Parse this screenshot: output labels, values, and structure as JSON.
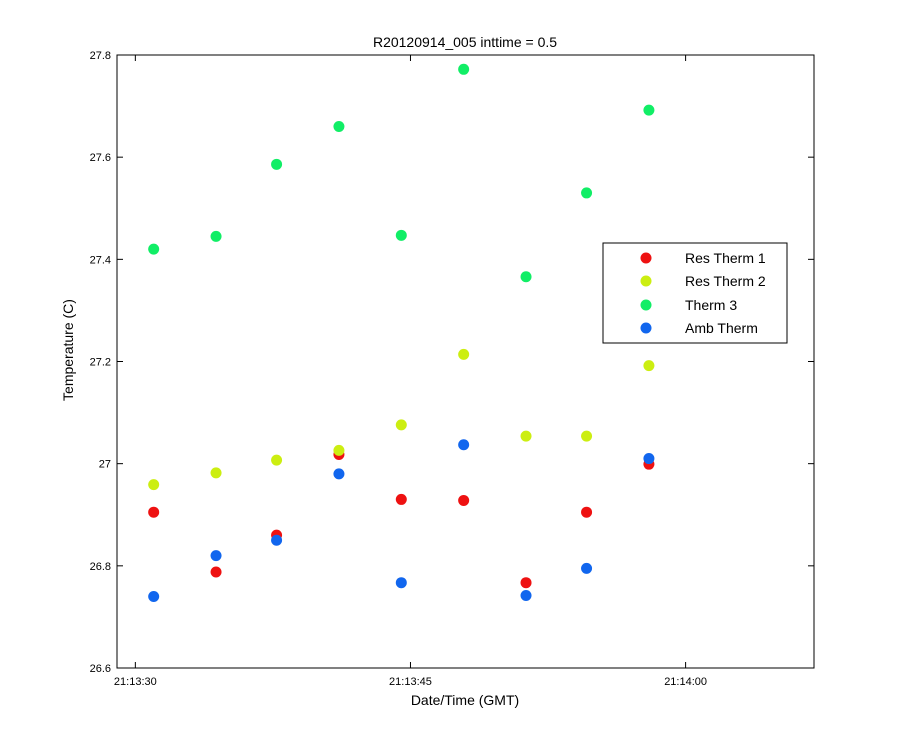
{
  "chart_data": {
    "type": "scatter",
    "title": "R20120914_005 inttime = 0.5",
    "xlabel": "Date/Time (GMT)",
    "ylabel": "Temperature (C)",
    "xlim": [
      "21:13:29",
      "21:14:07"
    ],
    "ylim": [
      26.6,
      27.8
    ],
    "xticks": [
      "21:13:30",
      "21:13:45",
      "21:14:00"
    ],
    "yticks": [
      "26.6",
      "26.8",
      "27",
      "27.2",
      "27.4",
      "27.6",
      "27.8"
    ],
    "legend_position": "right",
    "grid": false,
    "x": [
      "21:13:31",
      "21:13:34.4",
      "21:13:37.7",
      "21:13:41.1",
      "21:13:44.5",
      "21:13:47.9",
      "21:13:51.3",
      "21:13:54.6",
      "21:13:58"
    ],
    "series": [
      {
        "name": "Res Therm 1",
        "color": "#ee1111",
        "values": [
          26.905,
          26.788,
          26.86,
          27.018,
          26.93,
          26.928,
          26.767,
          26.905,
          26.999
        ]
      },
      {
        "name": "Res Therm 2",
        "color": "#ccee11",
        "values": [
          26.959,
          26.982,
          27.007,
          27.026,
          27.076,
          27.214,
          27.054,
          27.054,
          27.192
        ]
      },
      {
        "name": "Therm 3",
        "color": "#11ee66",
        "values": [
          27.42,
          27.445,
          27.586,
          27.66,
          27.447,
          27.772,
          27.366,
          27.53,
          27.692
        ]
      },
      {
        "name": "Amb Therm",
        "color": "#1166ee",
        "values": [
          26.74,
          26.82,
          26.85,
          26.98,
          26.767,
          27.037,
          26.742,
          26.795,
          27.01
        ]
      }
    ]
  }
}
